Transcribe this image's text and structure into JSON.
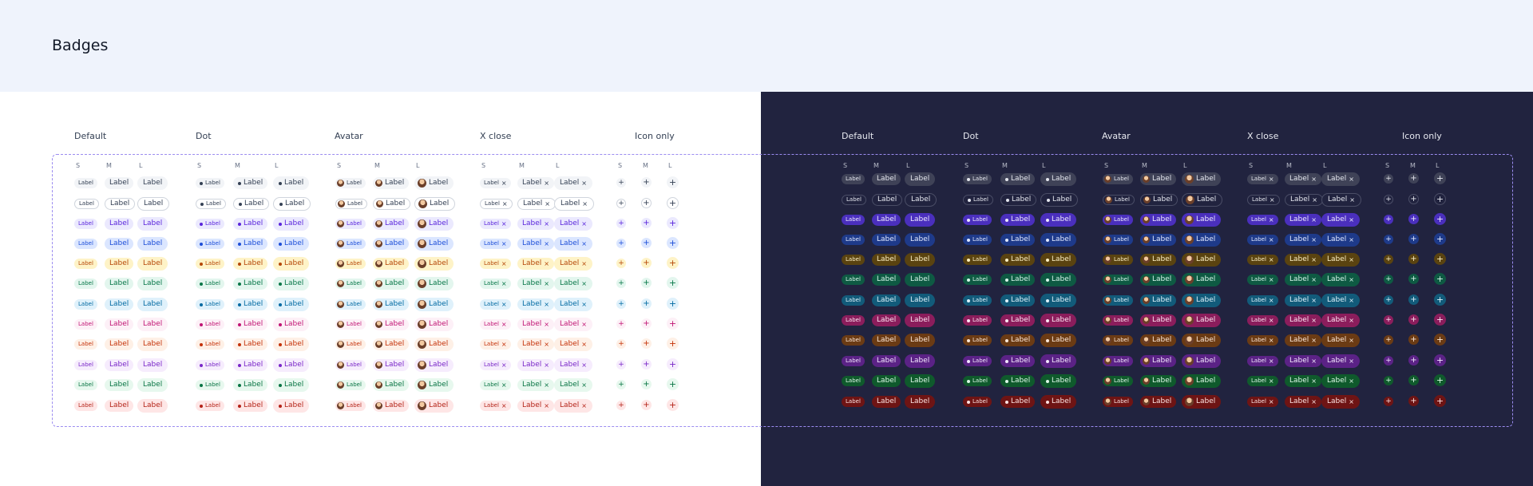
{
  "page": {
    "title": "Badges"
  },
  "groups": [
    "Default",
    "Dot",
    "Avatar",
    "X close",
    "Icon only"
  ],
  "sizes": [
    "S",
    "M",
    "L"
  ],
  "badge_label": "Label",
  "close_glyph": "×",
  "plus_glyph": "+",
  "variants": [
    {
      "name": "gray",
      "light": {
        "bg": "#f2f4f7",
        "fg": "#344054",
        "border": ""
      },
      "dark": {
        "bg": "#3f4257",
        "fg": "#e4e6ee",
        "border": ""
      }
    },
    {
      "name": "outline",
      "light": {
        "bg": "#ffffff",
        "fg": "#344054",
        "border": "#d0d5dd"
      },
      "dark": {
        "bg": "#21233f",
        "fg": "#e4e6ee",
        "border": "#4a4d66"
      }
    },
    {
      "name": "brand",
      "light": {
        "bg": "#ebe9fe",
        "fg": "#5925dc",
        "border": ""
      },
      "dark": {
        "bg": "#4a2fbd",
        "fg": "#eeeaff",
        "border": ""
      }
    },
    {
      "name": "blue",
      "light": {
        "bg": "#dbe6ff",
        "fg": "#1d4ed8",
        "border": ""
      },
      "dark": {
        "bg": "#1e3a8a",
        "fg": "#e0e8ff",
        "border": ""
      }
    },
    {
      "name": "warning",
      "light": {
        "bg": "#fef3c7",
        "fg": "#b54708",
        "border": ""
      },
      "dark": {
        "bg": "#5a4310",
        "fg": "#fdf0c4",
        "border": ""
      }
    },
    {
      "name": "success",
      "light": {
        "bg": "#e3f6ee",
        "fg": "#067647",
        "border": ""
      },
      "dark": {
        "bg": "#0e5a43",
        "fg": "#d7f5e9",
        "border": ""
      }
    },
    {
      "name": "sky",
      "light": {
        "bg": "#dff1fb",
        "fg": "#026aa2",
        "border": ""
      },
      "dark": {
        "bg": "#125b7a",
        "fg": "#def2fb",
        "border": ""
      }
    },
    {
      "name": "pink",
      "light": {
        "bg": "#fdf0f7",
        "fg": "#c11574",
        "border": ""
      },
      "dark": {
        "bg": "#8b1d5c",
        "fg": "#fde6f2",
        "border": ""
      }
    },
    {
      "name": "orange",
      "light": {
        "bg": "#fef0e6",
        "fg": "#c4320a",
        "border": ""
      },
      "dark": {
        "bg": "#6b3b14",
        "fg": "#fde8d8",
        "border": ""
      }
    },
    {
      "name": "purple",
      "light": {
        "bg": "#f6ecfd",
        "fg": "#7a27c8",
        "border": ""
      },
      "dark": {
        "bg": "#5b2286",
        "fg": "#f2e6fd",
        "border": ""
      }
    },
    {
      "name": "green",
      "light": {
        "bg": "#e7f8ee",
        "fg": "#087443",
        "border": ""
      },
      "dark": {
        "bg": "#0f5a2c",
        "fg": "#dcf7e6",
        "border": ""
      }
    },
    {
      "name": "red",
      "light": {
        "bg": "#fee6e6",
        "fg": "#b42318",
        "border": ""
      },
      "dark": {
        "bg": "#6e1414",
        "fg": "#fde3e1",
        "border": ""
      }
    }
  ]
}
